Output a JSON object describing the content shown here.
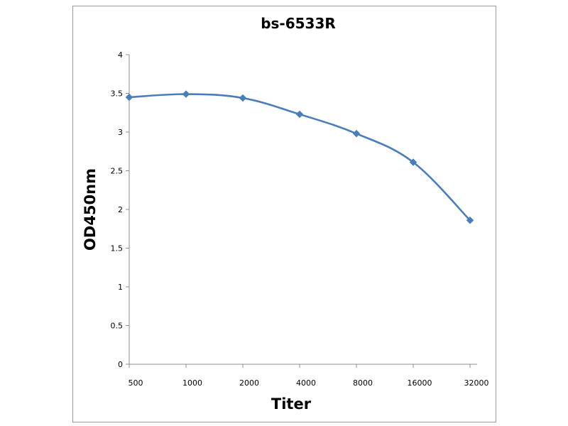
{
  "chart_data": {
    "type": "line",
    "title": "bs-6533R",
    "xlabel": "Titer",
    "ylabel": "OD450nm",
    "categories": [
      "500",
      "1000",
      "2000",
      "4000",
      "8000",
      "16000",
      "32000"
    ],
    "series": [
      {
        "values": [
          3.45,
          3.49,
          3.44,
          3.23,
          2.98,
          2.61,
          1.86
        ]
      }
    ],
    "ylim": [
      0,
      4
    ],
    "yticks": [
      "0",
      "0.5",
      "1",
      "1.5",
      "2",
      "2.5",
      "3",
      "3.5",
      "4"
    ],
    "grid": false,
    "smooth": true,
    "marker": "diamond",
    "line_color": "#4a7ebb"
  }
}
